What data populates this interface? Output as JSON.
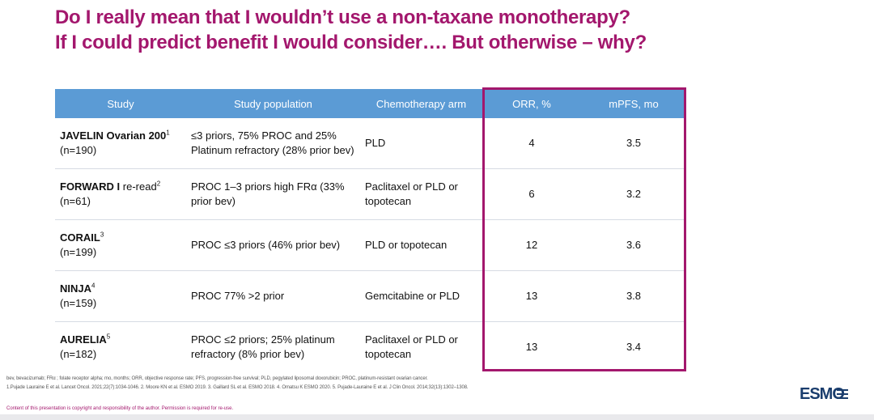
{
  "title": {
    "line1": "Do I really mean that I wouldn’t use a non-taxane monotherapy?",
    "line2": "If I could predict benefit I would consider…. But otherwise – why?"
  },
  "table": {
    "headers": [
      "Study",
      "Study population",
      "Chemotherapy arm",
      "ORR, %",
      "mPFS, mo"
    ],
    "rows": [
      {
        "study_name": "JAVELIN Ovarian 200",
        "ref": "1",
        "n": "(n=190)",
        "population": "≤3 priors, 75% PROC and 25% Platinum refractory (28% prior bev)",
        "arm": "PLD",
        "orr": "4",
        "mpfs": "3.5"
      },
      {
        "study_name": "FORWARD I",
        "suffix": " re-read",
        "ref": "2",
        "n": "(n=61)",
        "population": "PROC 1–3 priors high FRα (33% prior bev)",
        "arm": "Paclitaxel or PLD or topotecan",
        "orr": "6",
        "mpfs": "3.2"
      },
      {
        "study_name": "CORAIL",
        "ref": "3",
        "n": "(n=199)",
        "population": "PROC ≤3 priors (46% prior bev)",
        "arm": "PLD or topotecan",
        "orr": "12",
        "mpfs": "3.6"
      },
      {
        "study_name": "NINJA",
        "ref": "4",
        "n": "(n=159)",
        "population": "PROC 77% >2 prior",
        "arm": "Gemcitabine or PLD",
        "orr": "13",
        "mpfs": "3.8"
      },
      {
        "study_name": "AURELIA",
        "ref": "5",
        "n": "(n=182)",
        "population": "PROC ≤2 priors; 25% platinum refractory (8% prior bev)",
        "arm": "Paclitaxel or PLD or topotecan",
        "orr": "13",
        "mpfs": "3.4"
      }
    ]
  },
  "footnotes": {
    "abbreviations": "bev, bevacizumab; FRα ; folate receptor alpha; mo, months; ORR, objective response rate; PFS, progression-free survival; PLD, pegylated liposomal doxorubicin; PROC, platinum-resistant ovarian cancer.",
    "references": "1.Pujade Lauraine E et al. Lancet Oncol. 2021;22(7):1034-1046. 2. Moore KN et al. ESMO 2019. 3. Gaillard SL et al. ESMO 2018. 4. Omatsu K ESMO 2020. 5. Pujade-Lauraine E et al. J Clin Oncol. 2014;32(13):1302–1308.",
    "copyright": "Content of this presentation is copyright and responsibility of the author. Permission is required for re-use."
  },
  "logo": {
    "text": "ESMO",
    "icon": "esmo-logo"
  },
  "colors": {
    "title": "#a3176d",
    "header_bg": "#5b9bd5",
    "highlight_border": "#a3176d"
  }
}
